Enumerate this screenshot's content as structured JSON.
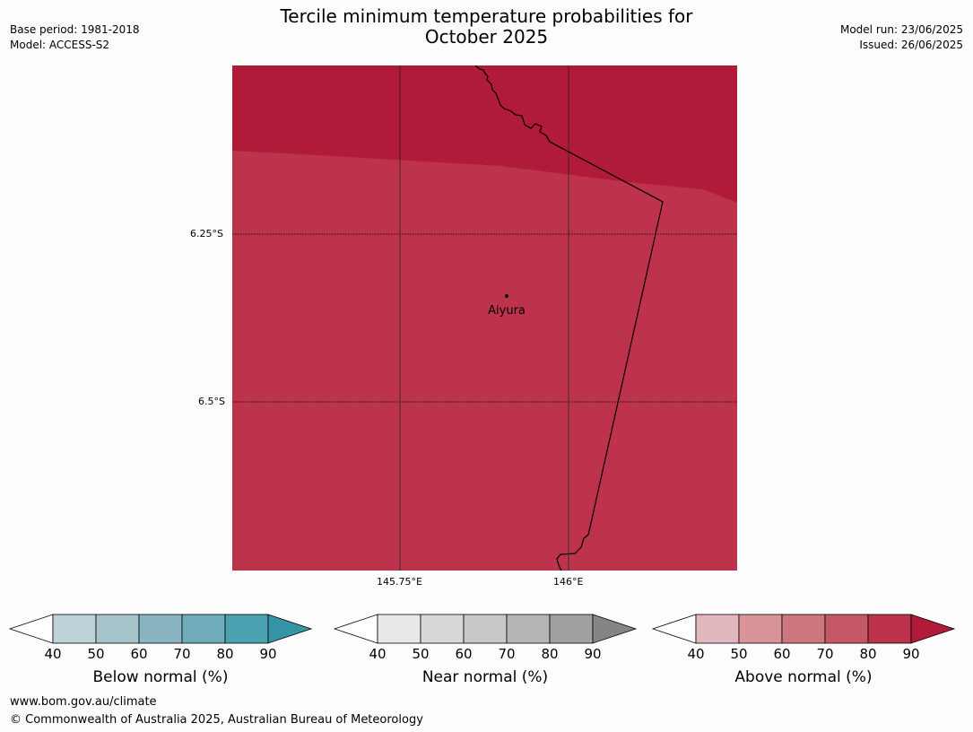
{
  "header": {
    "title_line1": "Tercile minimum temperature probabilities for",
    "title_line2": "October 2025",
    "base_period": "Base period: 1981-2018",
    "model": "Model: ACCESS-S2",
    "model_run": "Model run: 23/06/2025",
    "issued": "Issued: 26/06/2025"
  },
  "map": {
    "place_name": "Aiyura",
    "lat_labels": [
      "6.25°S",
      "6.5°S"
    ],
    "lon_labels": [
      "145.75°E",
      "146°E"
    ],
    "colors": {
      "band_above_90": "#b01b3a",
      "band_above_80_90": "#bc334b",
      "border_line": "#000000"
    }
  },
  "colorbars": [
    {
      "label": "Below normal (%)",
      "ticks": [
        "40",
        "50",
        "60",
        "70",
        "80",
        "90"
      ],
      "colors": [
        "#ffffff",
        "#bdd3d9",
        "#a6c5cb",
        "#8ab5c0",
        "#6eacba",
        "#4aa1b0",
        "#3594a5"
      ]
    },
    {
      "label": "Near normal (%)",
      "ticks": [
        "40",
        "50",
        "60",
        "70",
        "80",
        "90"
      ],
      "colors": [
        "#ffffff",
        "#e8e8e8",
        "#d8d8d8",
        "#c8c8c8",
        "#b5b5b5",
        "#a0a0a0",
        "#858585"
      ]
    },
    {
      "label": "Above normal (%)",
      "ticks": [
        "40",
        "50",
        "60",
        "70",
        "80",
        "90"
      ],
      "colors": [
        "#ffffff",
        "#e3b7be",
        "#d99499",
        "#cd767d",
        "#c45866",
        "#bc334b",
        "#b01b3a"
      ]
    }
  ],
  "footer": {
    "url": "www.bom.gov.au/climate",
    "copyright": "© Commonwealth of Australia 2025, Australian Bureau of Meteorology"
  }
}
